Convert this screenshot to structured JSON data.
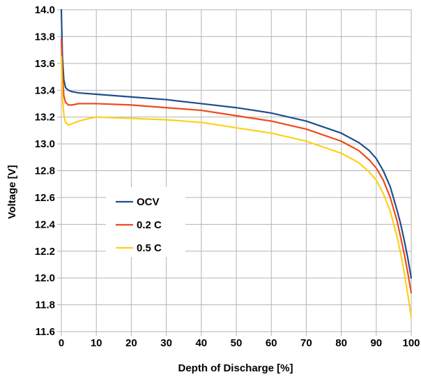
{
  "chart_data": {
    "type": "line",
    "title": "",
    "xlabel": "Depth of Discharge [%]",
    "ylabel": "Voltage [V]",
    "xlim": [
      0,
      100
    ],
    "ylim": [
      11.6,
      14.0
    ],
    "xticks": [
      "0",
      "10",
      "20",
      "30",
      "40",
      "50",
      "60",
      "70",
      "80",
      "90",
      "100"
    ],
    "yticks": [
      "11.6",
      "11.8",
      "12.0",
      "12.2",
      "12.4",
      "12.6",
      "12.8",
      "13.0",
      "13.2",
      "13.4",
      "13.6",
      "13.8",
      "14.0"
    ],
    "grid": true,
    "legend_position": "center-left",
    "series": [
      {
        "name": "OCV",
        "color": "#1f4e8c",
        "points": [
          [
            0,
            14.0
          ],
          [
            0.3,
            13.65
          ],
          [
            0.7,
            13.48
          ],
          [
            1.2,
            13.42
          ],
          [
            2,
            13.4
          ],
          [
            3,
            13.39
          ],
          [
            5,
            13.38
          ],
          [
            10,
            13.37
          ],
          [
            20,
            13.35
          ],
          [
            30,
            13.33
          ],
          [
            40,
            13.3
          ],
          [
            50,
            13.27
          ],
          [
            60,
            13.23
          ],
          [
            70,
            13.17
          ],
          [
            80,
            13.08
          ],
          [
            85,
            13.01
          ],
          [
            88,
            12.95
          ],
          [
            90,
            12.89
          ],
          [
            92,
            12.8
          ],
          [
            94,
            12.68
          ],
          [
            96,
            12.5
          ],
          [
            97,
            12.4
          ],
          [
            98,
            12.28
          ],
          [
            99,
            12.15
          ],
          [
            100,
            12.0
          ]
        ]
      },
      {
        "name": "0.2 C",
        "color": "#ee4a1c",
        "points": [
          [
            0,
            13.78
          ],
          [
            0.3,
            13.52
          ],
          [
            0.7,
            13.36
          ],
          [
            1.2,
            13.31
          ],
          [
            2,
            13.29
          ],
          [
            3,
            13.29
          ],
          [
            5,
            13.3
          ],
          [
            8,
            13.3
          ],
          [
            10,
            13.3
          ],
          [
            20,
            13.29
          ],
          [
            30,
            13.27
          ],
          [
            40,
            13.25
          ],
          [
            50,
            13.21
          ],
          [
            60,
            13.17
          ],
          [
            70,
            13.11
          ],
          [
            80,
            13.02
          ],
          [
            85,
            12.95
          ],
          [
            88,
            12.88
          ],
          [
            90,
            12.82
          ],
          [
            92,
            12.73
          ],
          [
            94,
            12.6
          ],
          [
            96,
            12.42
          ],
          [
            97,
            12.3
          ],
          [
            98,
            12.18
          ],
          [
            99,
            12.04
          ],
          [
            100,
            11.89
          ]
        ]
      },
      {
        "name": "0.5 C",
        "color": "#fdd01a",
        "points": [
          [
            0,
            13.65
          ],
          [
            0.3,
            13.35
          ],
          [
            0.7,
            13.22
          ],
          [
            1.2,
            13.16
          ],
          [
            2,
            13.14
          ],
          [
            3,
            13.15
          ],
          [
            5,
            13.17
          ],
          [
            8,
            13.19
          ],
          [
            10,
            13.2
          ],
          [
            20,
            13.19
          ],
          [
            30,
            13.18
          ],
          [
            40,
            13.16
          ],
          [
            50,
            13.12
          ],
          [
            60,
            13.08
          ],
          [
            70,
            13.02
          ],
          [
            80,
            12.93
          ],
          [
            85,
            12.86
          ],
          [
            88,
            12.79
          ],
          [
            90,
            12.73
          ],
          [
            92,
            12.63
          ],
          [
            94,
            12.5
          ],
          [
            96,
            12.3
          ],
          [
            97,
            12.18
          ],
          [
            98,
            12.04
          ],
          [
            99,
            11.88
          ],
          [
            100,
            11.71
          ]
        ]
      }
    ]
  }
}
